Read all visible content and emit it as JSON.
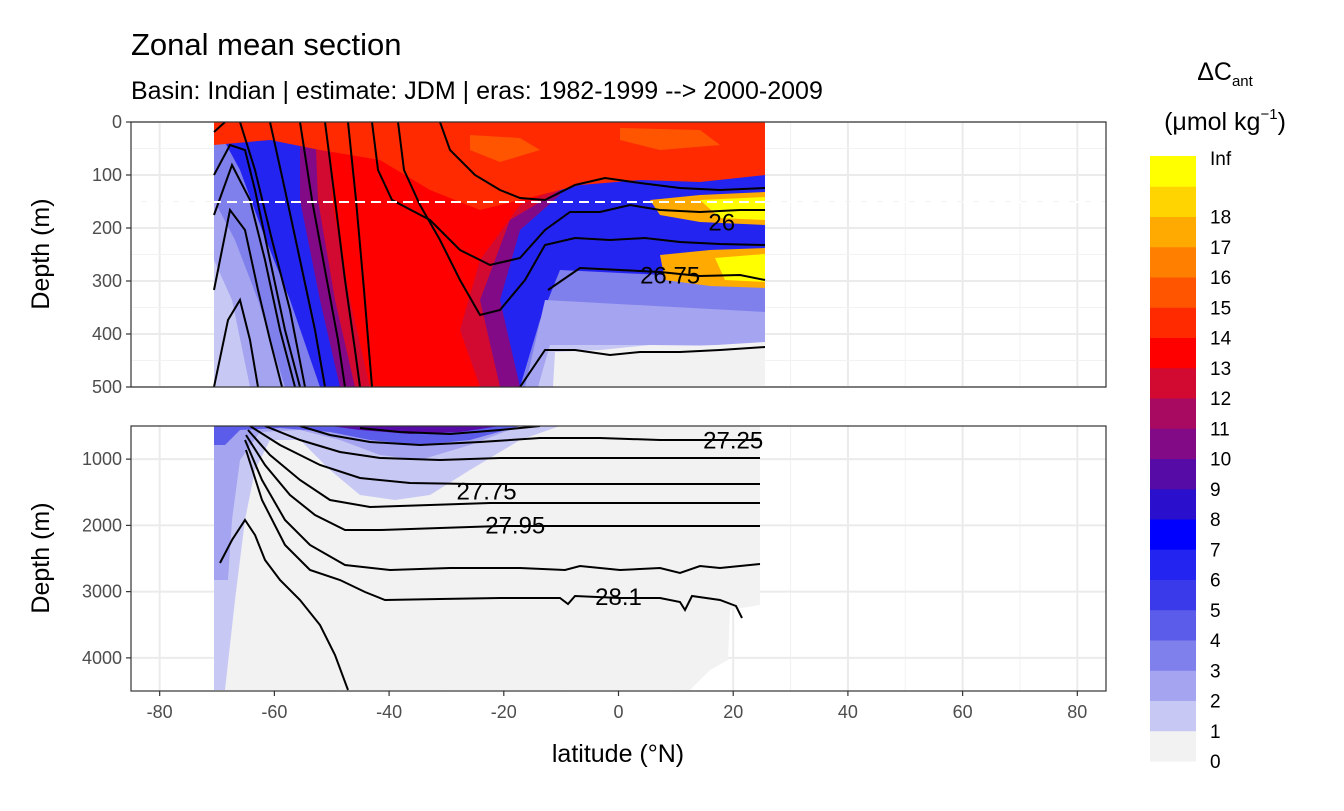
{
  "chart_data": {
    "type": "heatmap",
    "title": "Zonal mean section",
    "subtitle": "Basin: Indian | estimate: JDM  | eras: 1982-1999 --> 2000-2009",
    "xlabel": "latitude (°N)",
    "ylabel": "Depth (m)",
    "x_ticks": [
      -80,
      -60,
      -40,
      -20,
      0,
      20,
      40,
      60,
      80
    ],
    "xlim": [
      -85,
      85
    ],
    "data_lat_range": [
      -70,
      25
    ],
    "panels": [
      {
        "ylim": [
          0,
          500
        ],
        "y_ticks": [
          0,
          100,
          200,
          300,
          400,
          500
        ],
        "reversed": true
      },
      {
        "ylim": [
          500,
          4500
        ],
        "y_ticks": [
          1000,
          2000,
          3000,
          4000
        ],
        "reversed": true
      }
    ],
    "legend": {
      "title_main": "ΔC",
      "title_sub": "ant",
      "unit_main": "(μmol kg",
      "unit_sup": "−1",
      "unit_end": ")",
      "labels": [
        "0",
        "1",
        "2",
        "3",
        "4",
        "5",
        "6",
        "7",
        "8",
        "9",
        "10",
        "11",
        "12",
        "13",
        "14",
        "15",
        "16",
        "17",
        "18",
        "Inf"
      ],
      "colors": [
        "#f2f2f2",
        "#c8c8f4",
        "#a4a4f0",
        "#8080ec",
        "#5c5cea",
        "#3a3aea",
        "#2424f0",
        "#0000ff",
        "#2a10cc",
        "#560aa6",
        "#820a86",
        "#a80a62",
        "#d20a32",
        "#ff0000",
        "#ff2a00",
        "#ff5500",
        "#ff8000",
        "#ffaa00",
        "#ffd400",
        "#ffff00"
      ],
      "placement": "right"
    },
    "reference_line_depth": 150,
    "isopycnal_labels": [
      {
        "text": "26",
        "lat": 18,
        "depth": 190
      },
      {
        "text": "26.75",
        "lat": 9,
        "depth": 290
      },
      {
        "text": "27.25",
        "lat": 20,
        "depth": 720
      },
      {
        "text": "27.75",
        "lat": -23,
        "depth": 1490
      },
      {
        "text": "27.95",
        "lat": -18,
        "depth": 2000
      },
      {
        "text": "28.1",
        "lat": 0,
        "depth": 3080
      }
    ]
  }
}
